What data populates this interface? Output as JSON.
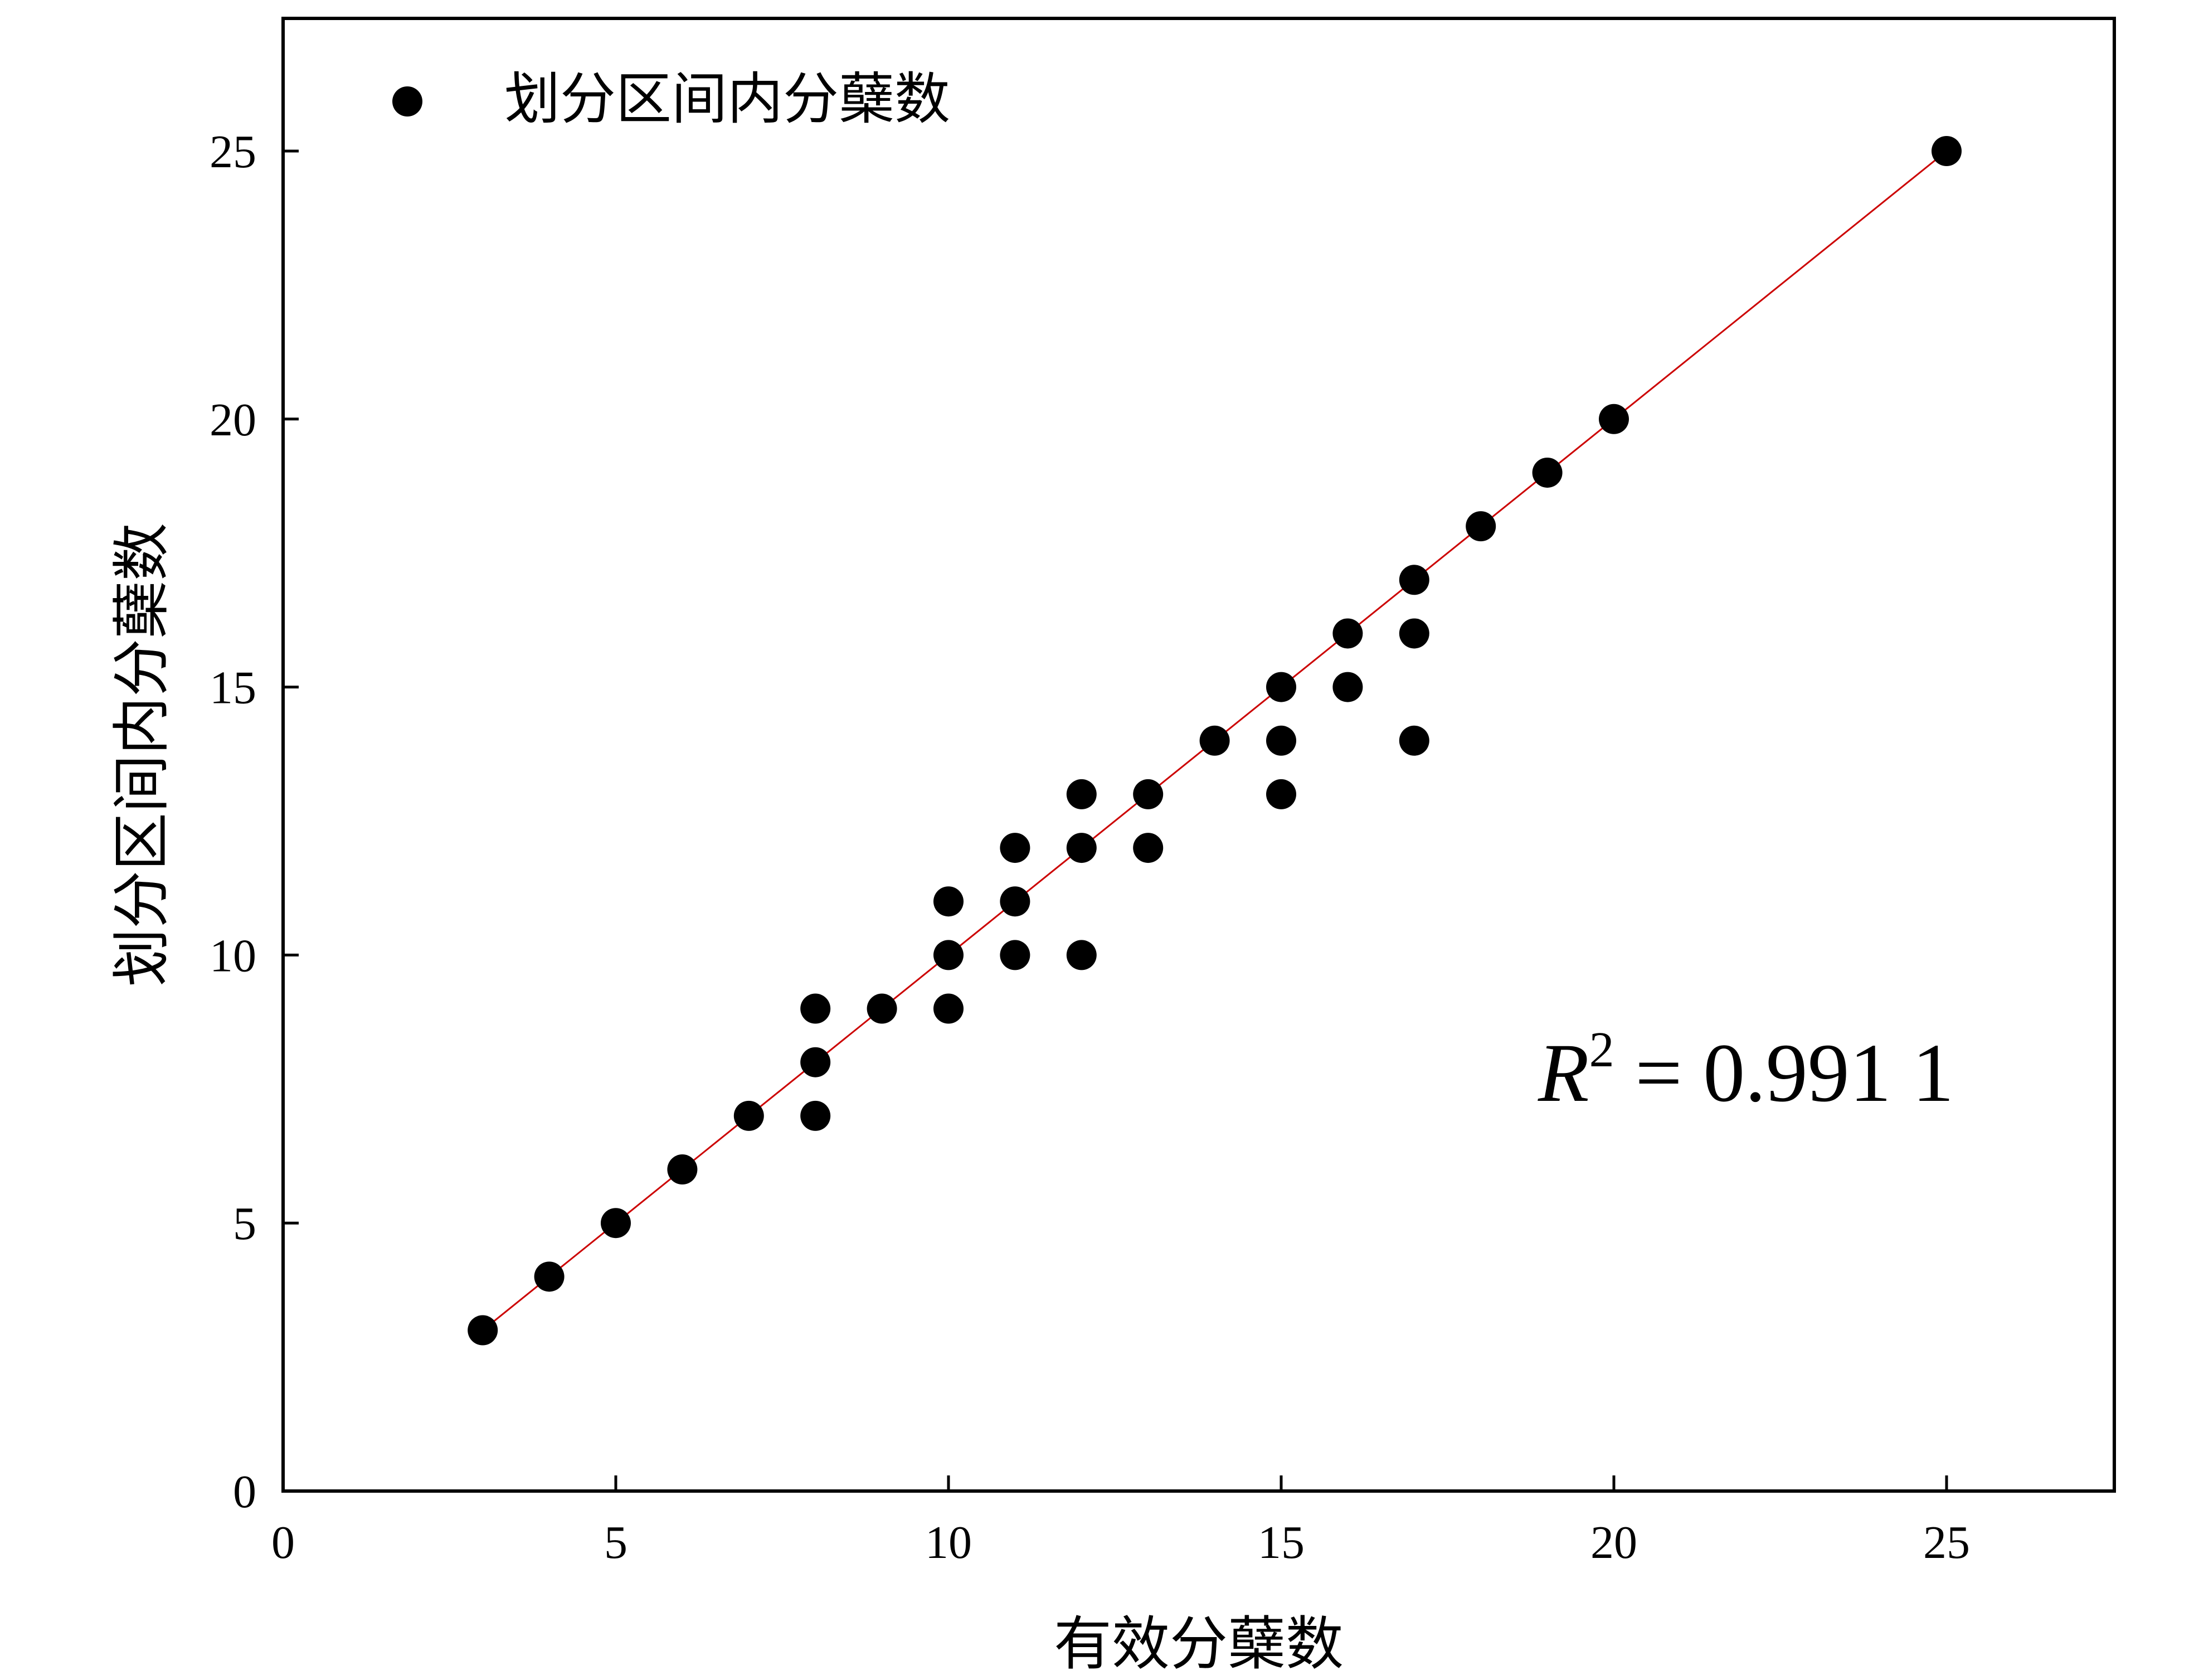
{
  "chart_data": {
    "type": "scatter",
    "xlabel": "有效分蘖数",
    "ylabel": "划分区间内分蘖数",
    "xlim": [
      0,
      27.5
    ],
    "ylim": [
      0,
      27.5
    ],
    "xticks": [
      0,
      5,
      10,
      15,
      20,
      25
    ],
    "yticks": [
      0,
      5,
      10,
      15,
      20,
      25
    ],
    "xtick_labels": [
      "0",
      "5",
      "10",
      "15",
      "20",
      "25"
    ],
    "ytick_labels": [
      "0",
      "5",
      "10",
      "15",
      "20",
      "25"
    ],
    "grid": false,
    "legend": {
      "position": "top-left",
      "entries": [
        "划分区间内分蘖数"
      ]
    },
    "series": [
      {
        "name": "划分区间内分蘖数",
        "color": "#000000",
        "points": [
          [
            3,
            3
          ],
          [
            4,
            4
          ],
          [
            5,
            5
          ],
          [
            6,
            6
          ],
          [
            7,
            7
          ],
          [
            8,
            7
          ],
          [
            8,
            8
          ],
          [
            8,
            9
          ],
          [
            9,
            9
          ],
          [
            10,
            9
          ],
          [
            10,
            10
          ],
          [
            10,
            11
          ],
          [
            11,
            10
          ],
          [
            11,
            11
          ],
          [
            11,
            12
          ],
          [
            12,
            10
          ],
          [
            12,
            12
          ],
          [
            12,
            13
          ],
          [
            13,
            12
          ],
          [
            13,
            13
          ],
          [
            14,
            14
          ],
          [
            15,
            13
          ],
          [
            15,
            14
          ],
          [
            15,
            15
          ],
          [
            16,
            15
          ],
          [
            16,
            16
          ],
          [
            17,
            14
          ],
          [
            17,
            16
          ],
          [
            17,
            17
          ],
          [
            18,
            18
          ],
          [
            19,
            19
          ],
          [
            20,
            20
          ],
          [
            25,
            25
          ]
        ]
      }
    ],
    "fit_line": {
      "x": [
        3,
        25
      ],
      "y": [
        3,
        25
      ],
      "color": "#cc0000"
    },
    "annotation": {
      "r_symbol": "R",
      "r_exponent": "2",
      "text": " = 0.991 1"
    }
  }
}
